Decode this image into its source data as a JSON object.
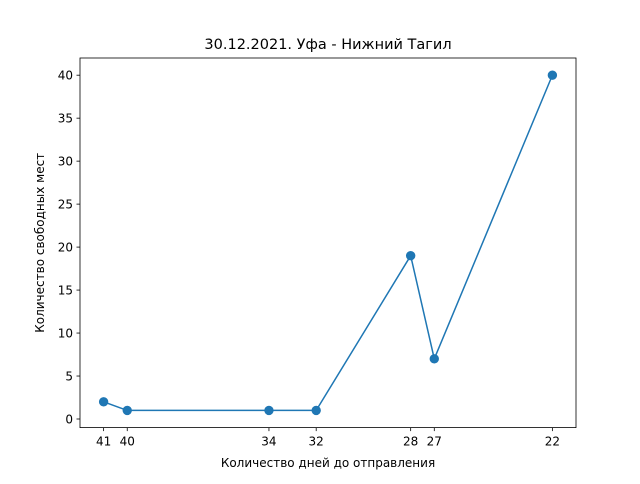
{
  "chart_data": {
    "type": "line",
    "title": "30.12.2021. Уфа - Нижний Тагил",
    "xlabel": "Количество дней до отправления",
    "ylabel": "Количество свободных мест",
    "x_axis_inverted": true,
    "xlim": [
      42,
      21
    ],
    "ylim": [
      -1,
      42
    ],
    "x_ticks": [
      41,
      40,
      34,
      32,
      28,
      27,
      22
    ],
    "y_ticks": [
      0,
      5,
      10,
      15,
      20,
      25,
      30,
      35,
      40
    ],
    "grid": false,
    "legend": "none",
    "series": [
      {
        "color": "#1f77b4",
        "marker": "circle",
        "points": [
          {
            "x": 41,
            "y": 2
          },
          {
            "x": 40,
            "y": 1
          },
          {
            "x": 34,
            "y": 1
          },
          {
            "x": 32,
            "y": 1
          },
          {
            "x": 28,
            "y": 19
          },
          {
            "x": 27,
            "y": 7
          },
          {
            "x": 22,
            "y": 40
          }
        ]
      }
    ]
  }
}
